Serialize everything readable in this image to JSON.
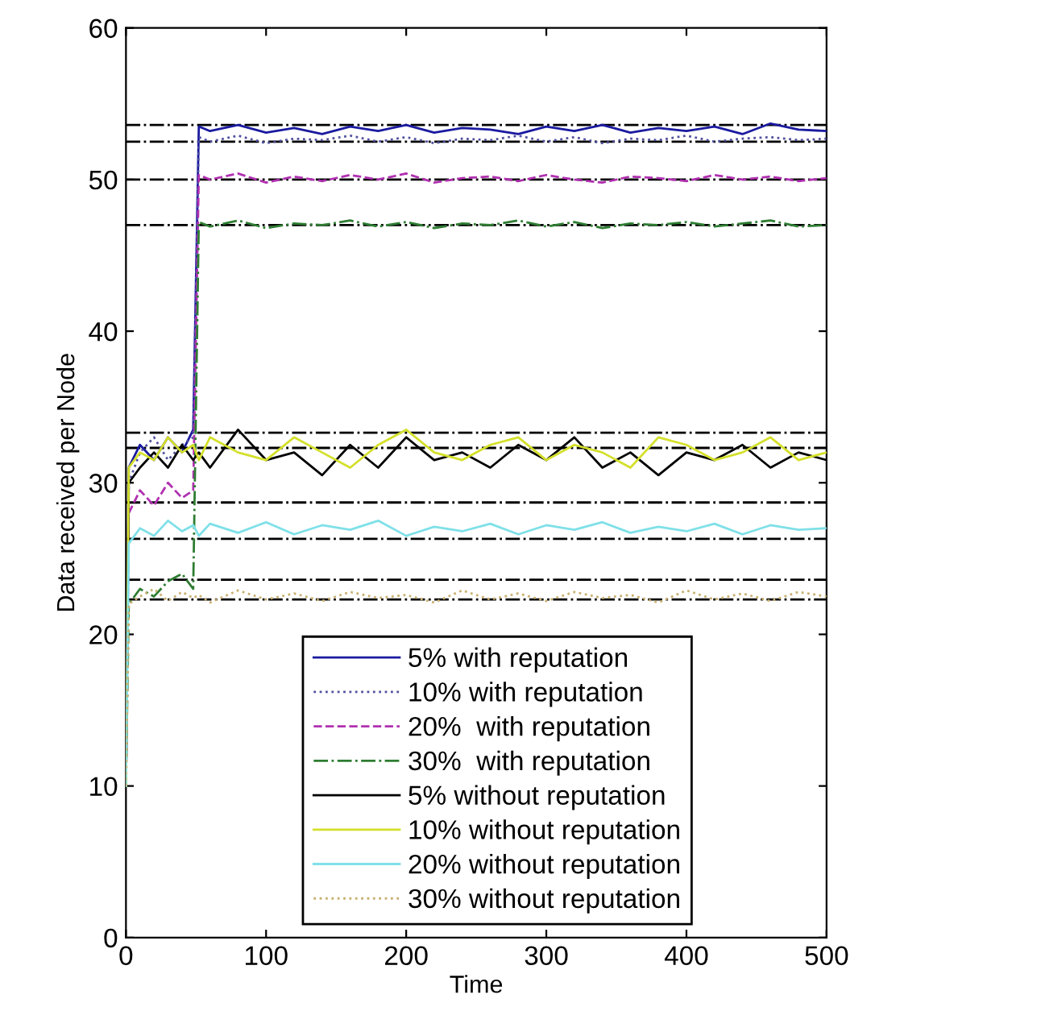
{
  "chart_data": {
    "type": "line",
    "xlabel": "Time",
    "ylabel": "Data received per Node",
    "x": [
      0,
      2,
      10,
      20,
      30,
      40,
      48,
      52,
      60,
      80,
      100,
      120,
      140,
      160,
      180,
      200,
      220,
      240,
      260,
      280,
      300,
      320,
      340,
      360,
      380,
      400,
      420,
      440,
      460,
      480,
      500
    ],
    "series": [
      {
        "name": "5% with reputation",
        "color": "#1a1aa0",
        "line_style": "solid",
        "values": [
          10,
          31,
          32.5,
          31.5,
          33,
          32,
          33.5,
          53.5,
          53.2,
          53.6,
          53.1,
          53.4,
          53.0,
          53.5,
          53.2,
          53.6,
          53.1,
          53.4,
          53.3,
          53.0,
          53.5,
          53.2,
          53.6,
          53.1,
          53.4,
          53.2,
          53.5,
          53.0,
          53.7,
          53.3,
          53.2
        ]
      },
      {
        "name": "10% with reputation",
        "color": "#5050a0",
        "line_style": "dotted",
        "values": [
          10,
          30,
          32,
          33,
          31.5,
          32.5,
          33,
          52.8,
          52.5,
          52.9,
          52.4,
          52.7,
          52.6,
          52.9,
          52.5,
          52.8,
          52.4,
          52.7,
          52.6,
          52.9,
          52.5,
          52.8,
          52.4,
          52.7,
          52.6,
          52.9,
          52.5,
          52.7,
          52.8,
          52.6,
          52.7
        ]
      },
      {
        "name": "20%  with reputation",
        "color": "#b030b0",
        "line_style": "dashed",
        "values": [
          10,
          28,
          29.5,
          28.5,
          30,
          29,
          29.5,
          50.3,
          50.0,
          50.4,
          49.8,
          50.2,
          49.9,
          50.3,
          50.0,
          50.4,
          49.8,
          50.1,
          50.2,
          49.9,
          50.3,
          50.0,
          49.8,
          50.2,
          50.1,
          49.9,
          50.3,
          50.0,
          50.2,
          49.9,
          50.1
        ]
      },
      {
        "name": "30%  with reputation",
        "color": "#2e7d32",
        "line_style": "dashdot",
        "values": [
          10,
          22,
          23,
          22.5,
          23.5,
          24,
          23,
          47.2,
          46.9,
          47.3,
          46.8,
          47.1,
          47.0,
          47.3,
          46.9,
          47.2,
          46.8,
          47.1,
          47.0,
          47.3,
          46.9,
          47.2,
          46.8,
          47.1,
          47.0,
          47.2,
          46.9,
          47.1,
          47.3,
          46.9,
          47.0
        ]
      },
      {
        "name": "5% without reputation",
        "color": "#000000",
        "line_style": "solid",
        "values": [
          10,
          30,
          31,
          32,
          31,
          32.5,
          31.5,
          32,
          31,
          33.5,
          31.5,
          32,
          30.5,
          32.5,
          31,
          33,
          31.5,
          32,
          31,
          32.5,
          31.5,
          33,
          31,
          32,
          30.5,
          32,
          31.5,
          32.5,
          31,
          32,
          31.5
        ]
      },
      {
        "name": "10% without reputation",
        "color": "#d4e02a",
        "line_style": "solid",
        "values": [
          10,
          31,
          32,
          31.5,
          33,
          32,
          32.5,
          31.5,
          33,
          32,
          31.5,
          33,
          32,
          31,
          32.5,
          33.5,
          32,
          31.5,
          32.5,
          33,
          31.5,
          32.5,
          32,
          31,
          33,
          32.5,
          31.5,
          32,
          33,
          31.5,
          32
        ]
      },
      {
        "name": "20% without reputation",
        "color": "#7fe0e8",
        "line_style": "solid",
        "values": [
          10,
          26,
          27,
          26.5,
          27.5,
          26.8,
          27.2,
          26.5,
          27.3,
          26.7,
          27.4,
          26.6,
          27.2,
          26.9,
          27.5,
          26.5,
          27.1,
          26.8,
          27.3,
          26.6,
          27.2,
          26.9,
          27.4,
          26.7,
          27.1,
          26.8,
          27.3,
          26.6,
          27.2,
          26.9,
          27.0
        ]
      },
      {
        "name": "30% without reputation",
        "color": "#c8b070",
        "line_style": "dotted",
        "values": [
          10,
          22,
          22.5,
          23,
          22.2,
          22.8,
          22.4,
          22.6,
          22.1,
          22.9,
          22.3,
          22.7,
          22.2,
          22.8,
          22.4,
          22.6,
          22.1,
          22.9,
          22.3,
          22.7,
          22.2,
          22.8,
          22.4,
          22.6,
          22.1,
          22.9,
          22.3,
          22.7,
          22.2,
          22.8,
          22.5
        ]
      }
    ],
    "ref_lines": [
      {
        "axis": "y",
        "value": 53.6,
        "color": "#000000",
        "line_style": "dashdot"
      },
      {
        "axis": "y",
        "value": 52.5,
        "color": "#000000",
        "line_style": "dashdot"
      },
      {
        "axis": "y",
        "value": 50,
        "color": "#000000",
        "line_style": "dashdot"
      },
      {
        "axis": "y",
        "value": 47,
        "color": "#000000",
        "line_style": "dashdot"
      },
      {
        "axis": "y",
        "value": 33.3,
        "color": "#000000",
        "line_style": "dashdot"
      },
      {
        "axis": "y",
        "value": 32.3,
        "color": "#000000",
        "line_style": "dashdot"
      },
      {
        "axis": "y",
        "value": 28.7,
        "color": "#000000",
        "line_style": "dashdot"
      },
      {
        "axis": "y",
        "value": 26.3,
        "color": "#000000",
        "line_style": "dashdot"
      },
      {
        "axis": "y",
        "value": 23.6,
        "color": "#000000",
        "line_style": "dashdot"
      },
      {
        "axis": "y",
        "value": 22.3,
        "color": "#000000",
        "line_style": "dashdot"
      }
    ],
    "xlim": [
      0,
      500
    ],
    "xticks": [
      0,
      100,
      200,
      300,
      400,
      500
    ],
    "ylim": [
      0,
      60
    ],
    "yticks": [
      0,
      10,
      20,
      30,
      40,
      50,
      60
    ],
    "grid": false,
    "legend": "bottom",
    "marker": "none"
  }
}
